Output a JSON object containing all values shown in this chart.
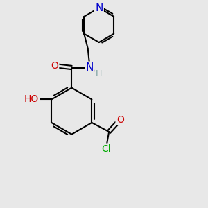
{
  "background_color": "#e8e8e8",
  "bond_color": "#000000",
  "bond_width": 1.5,
  "atom_colors": {
    "N": "#0000cc",
    "O": "#cc0000",
    "Cl": "#00aa00",
    "H": "#7aa0a0"
  },
  "font_size": 9,
  "figsize": [
    3.0,
    3.0
  ],
  "dpi": 100
}
